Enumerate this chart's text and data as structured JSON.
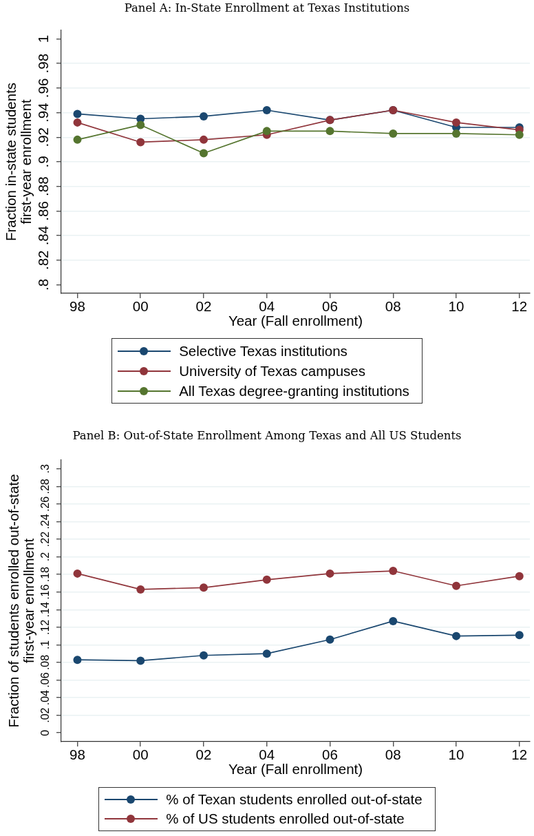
{
  "chart_data": [
    {
      "type": "line",
      "title": "Panel A: In-State Enrollment at Texas Institutions",
      "xlabel": "Year (Fall enrollment)",
      "ylabel": "Fraction in-state students\nfirst-year enrollment",
      "categories": [
        "98",
        "00",
        "02",
        "04",
        "06",
        "08",
        "10",
        "12"
      ],
      "series": [
        {
          "name": "Selective Texas institutions",
          "color": "#1a476f",
          "values": [
            0.939,
            0.935,
            0.937,
            0.942,
            0.934,
            0.942,
            0.928,
            0.928
          ]
        },
        {
          "name": "University of Texas campuses",
          "color": "#90353b",
          "values": [
            0.932,
            0.916,
            0.918,
            0.922,
            0.934,
            0.942,
            0.932,
            0.926
          ]
        },
        {
          "name": "All Texas degree-granting institutions",
          "color": "#55752f",
          "values": [
            0.918,
            0.93,
            0.907,
            0.925,
            0.925,
            0.923,
            0.923,
            0.922
          ]
        }
      ],
      "ylim": [
        0.793,
        1.007
      ],
      "yticks": [
        {
          "value": 0.8,
          "label": ".8"
        },
        {
          "value": 0.82,
          "label": ".82"
        },
        {
          "value": 0.84,
          "label": ".84"
        },
        {
          "value": 0.86,
          "label": ".86"
        },
        {
          "value": 0.88,
          "label": ".88"
        },
        {
          "value": 0.9,
          "label": ".9"
        },
        {
          "value": 0.92,
          "label": ".92"
        },
        {
          "value": 0.94,
          "label": ".94"
        },
        {
          "value": 0.96,
          "label": ".96"
        },
        {
          "value": 0.98,
          "label": ".98"
        },
        1
      ],
      "grid": "y",
      "legend": "bottom",
      "marker": "circle"
    },
    {
      "type": "line",
      "title": "Panel B: Out-of-State Enrollment Among Texas and All US Students",
      "xlabel": "Year (Fall enrollment)",
      "ylabel": "Fraction of students enrolled out-of-state\nfirst-year enrollment",
      "categories": [
        "98",
        "00",
        "02",
        "04",
        "06",
        "08",
        "10",
        "12"
      ],
      "series": [
        {
          "name": "% of Texan students enrolled out-of-state",
          "color": "#1a476f",
          "values": [
            0.083,
            0.082,
            0.088,
            0.09,
            0.106,
            0.127,
            0.11,
            0.111
          ]
        },
        {
          "name": "% of US students enrolled out-of-state",
          "color": "#90353b",
          "values": [
            0.181,
            0.163,
            0.165,
            0.174,
            0.181,
            0.184,
            0.167,
            0.178
          ]
        }
      ],
      "ylim": [
        -0.01,
        0.31
      ],
      "yticks": [
        0,
        {
          "value": 0.02,
          "label": ".02"
        },
        {
          "value": 0.04,
          "label": ".04"
        },
        {
          "value": 0.06,
          "label": ".06"
        },
        {
          "value": 0.08,
          "label": ".08"
        },
        {
          "value": 0.1,
          "label": ".1"
        },
        {
          "value": 0.12,
          "label": ".12"
        },
        {
          "value": 0.14,
          "label": ".14"
        },
        {
          "value": 0.16,
          "label": ".16"
        },
        {
          "value": 0.18,
          "label": ".18"
        },
        {
          "value": 0.2,
          "label": ".2"
        },
        {
          "value": 0.22,
          "label": ".22"
        },
        {
          "value": 0.24,
          "label": ".24"
        },
        {
          "value": 0.26,
          "label": ".26"
        },
        {
          "value": 0.28,
          "label": ".28"
        },
        {
          "value": 0.3,
          "label": ".3"
        }
      ],
      "grid": "y",
      "legend": "bottom",
      "marker": "circle"
    }
  ]
}
